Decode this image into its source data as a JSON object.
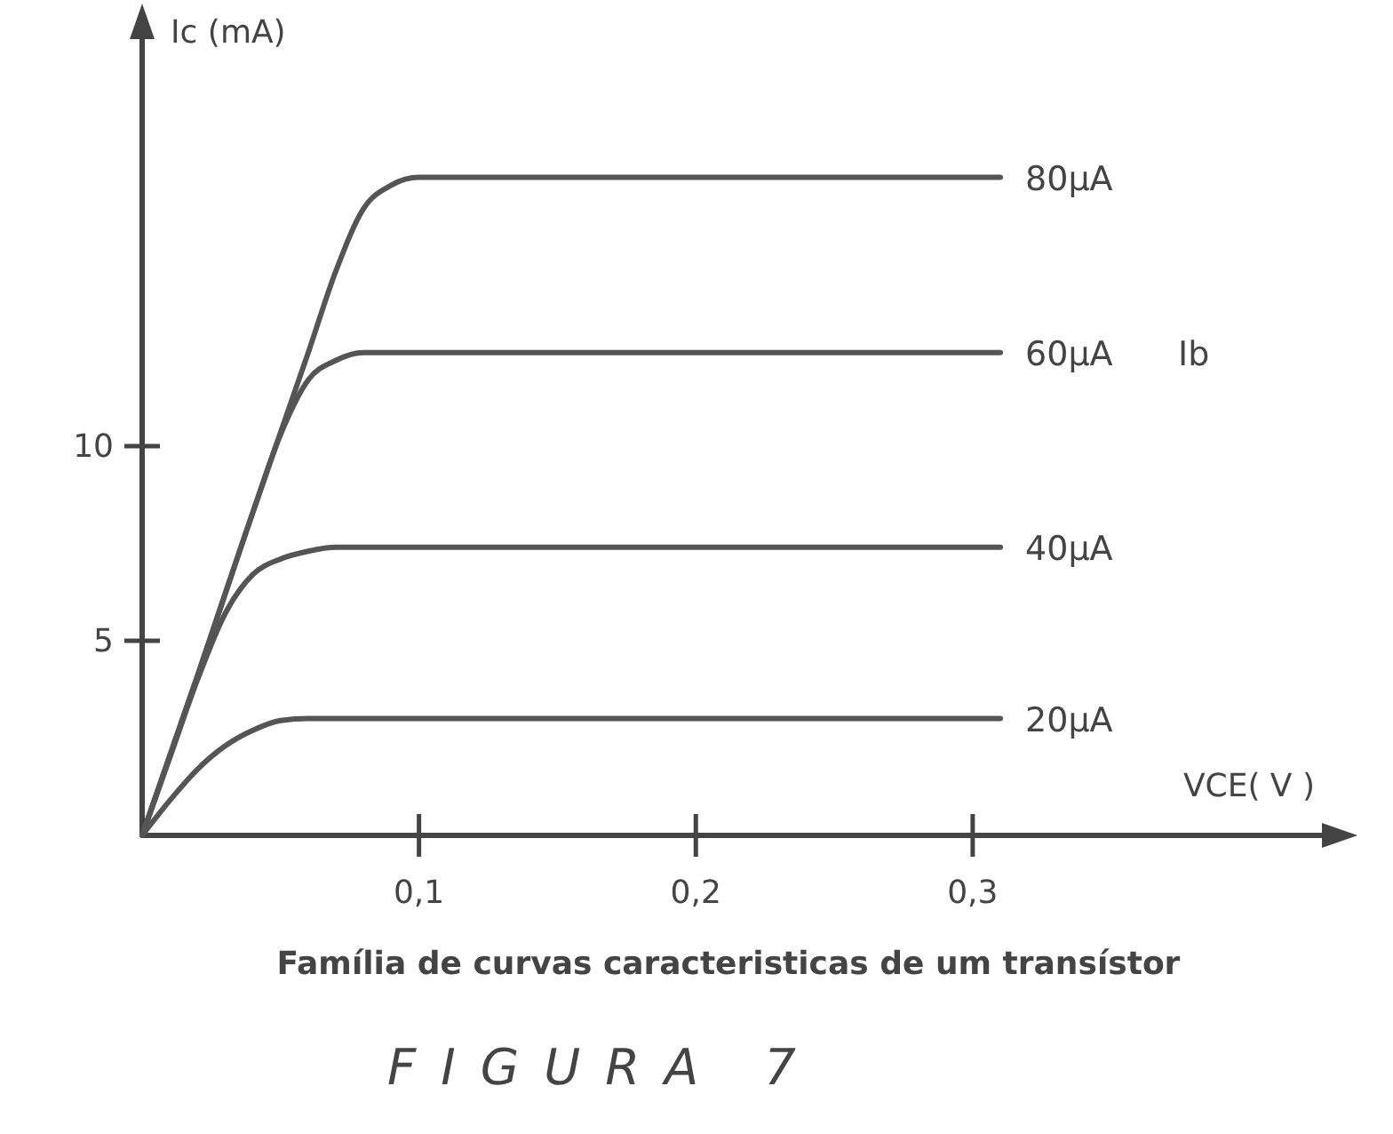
{
  "chart_data": {
    "type": "line",
    "title": "Família de curvas caracteristicas de um transístor",
    "xlabel": "VCE( V )",
    "ylabel": "Ic (mA)",
    "xlim": [
      0,
      0.43
    ],
    "ylim": [
      0,
      21
    ],
    "xticks": [
      {
        "value": 0.1,
        "label": "0,1"
      },
      {
        "value": 0.2,
        "label": "0,2"
      },
      {
        "value": 0.3,
        "label": "0,3"
      }
    ],
    "yticks": [
      5,
      10
    ],
    "grid": false,
    "legend": false,
    "marker": "none",
    "line_style": "solid",
    "series": [
      {
        "name": "80µA",
        "color": "#555555",
        "x": [
          0,
          0.02,
          0.04,
          0.06,
          0.07,
          0.08,
          0.09,
          0.1,
          0.11,
          0.31
        ],
        "values": [
          0,
          4.1,
          8.3,
          12.4,
          14.5,
          16.1,
          16.7,
          16.9,
          16.9,
          16.9
        ]
      },
      {
        "name": "60µA",
        "color": "#555555",
        "x": [
          0,
          0.02,
          0.04,
          0.05,
          0.06,
          0.07,
          0.08,
          0.09,
          0.31
        ],
        "values": [
          0,
          4.1,
          8.3,
          10.3,
          11.7,
          12.2,
          12.4,
          12.4,
          12.4
        ]
      },
      {
        "name": "40µA",
        "color": "#555555",
        "x": [
          0,
          0.01,
          0.02,
          0.03,
          0.04,
          0.05,
          0.06,
          0.07,
          0.31
        ],
        "values": [
          0,
          2.0,
          4.0,
          5.7,
          6.7,
          7.1,
          7.3,
          7.4,
          7.4
        ]
      },
      {
        "name": "20µA",
        "color": "#555555",
        "x": [
          0,
          0.01,
          0.02,
          0.03,
          0.04,
          0.05,
          0.06,
          0.31
        ],
        "values": [
          0,
          0.9,
          1.7,
          2.3,
          2.7,
          2.95,
          3.0,
          3.0
        ]
      }
    ],
    "annotations": [
      "Ib",
      "FIGURA 7"
    ]
  }
}
